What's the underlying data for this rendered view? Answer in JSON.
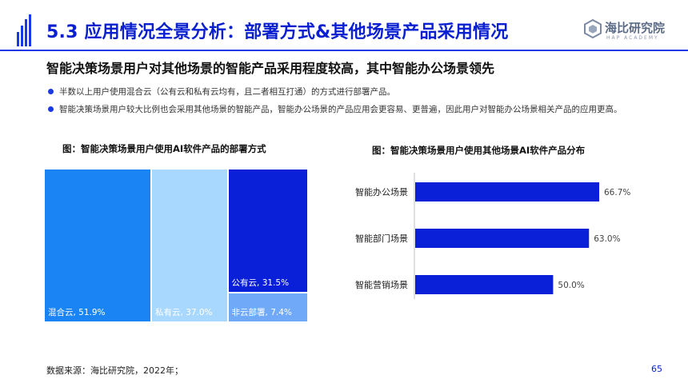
{
  "header": {
    "title": "5.3 应用情况全景分析：部署方式&其他场景产品采用情况",
    "logo_cn": "海比研究院",
    "logo_en": "HAP ACADEMY",
    "accent_color": "#1a38e6"
  },
  "subtitle": "智能决策场景用户对其他场景的智能产品采用程度较高，其中智能办公场景领先",
  "bullets": [
    "半数以上用户使用混合云（公有云和私有云均有，且二者相互打通）的方式进行部署产品。",
    "智能决策场景用户较大比例也会采用其他场景的智能产品，智能办公场景的产品应用会更容易、更普遍，因此用户对智能办公场景相关产品的应用更高。"
  ],
  "chart_data": [
    {
      "type": "treemap",
      "title": "图：智能决策场景用户使用AI软件产品的部署方式",
      "items": [
        {
          "label": "混合云, 51.9%",
          "value": 51.9,
          "color": "#1a84f5"
        },
        {
          "label": "私有云, 37.0%",
          "value": 37.0,
          "color": "#a9d8ff"
        },
        {
          "label": "公有云, 31.5%",
          "value": 31.5,
          "color": "#0a1fd8"
        },
        {
          "label": "非云部署, 7.4%",
          "value": 7.4,
          "color": "#6fa9f7"
        }
      ]
    },
    {
      "type": "bar",
      "orientation": "horizontal",
      "title": "图：智能决策场景用户使用其他场景AI软件产品分布",
      "categories": [
        "智能办公场景",
        "智能部门场景",
        "智能营销场景"
      ],
      "values": [
        66.7,
        63.0,
        50.0
      ],
      "value_labels": [
        "66.7%",
        "63.0%",
        "50.0%"
      ],
      "bar_color": "#0a1fd8",
      "xlim": [
        0,
        100
      ]
    }
  ],
  "footer": {
    "source": "数据来源：海比研究院，2022年；",
    "page_number": "65"
  }
}
